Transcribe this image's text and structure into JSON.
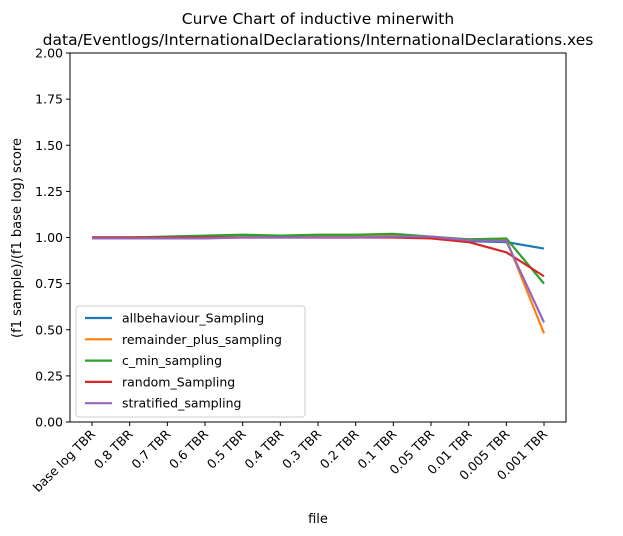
{
  "chart_data": {
    "type": "line",
    "title_line1": "Curve Chart of inductive minerwith",
    "title_line2": "data/Eventlogs/InternationalDeclarations/InternationalDeclarations.xes",
    "xlabel": "file",
    "ylabel": "(f1 sample)/(f1 base log) score",
    "ylim": [
      0,
      2
    ],
    "yticks": [
      "0.00",
      "0.25",
      "0.50",
      "0.75",
      "1.00",
      "1.25",
      "1.50",
      "1.75",
      "2.00"
    ],
    "categories": [
      "base log TBR",
      "0.8 TBR",
      "0.7 TBR",
      "0.6 TBR",
      "0.5 TBR",
      "0.4 TBR",
      "0.3 TBR",
      "0.2 TBR",
      "0.1 TBR",
      "0.05 TBR",
      "0.01 TBR",
      "0.005 TBR",
      "0.001 TBR"
    ],
    "grid": false,
    "legend_position": "lower-left",
    "series": [
      {
        "name": "allbehaviour_Sampling",
        "color": "#1f77b4",
        "values": [
          1.0,
          1.0,
          1.0,
          1.0,
          1.005,
          1.005,
          1.005,
          1.005,
          1.01,
          1.0,
          0.98,
          0.975,
          0.94
        ]
      },
      {
        "name": "remainder_plus_sampling",
        "color": "#ff7f0e",
        "values": [
          1.0,
          1.0,
          1.0,
          1.005,
          1.005,
          1.005,
          1.005,
          1.005,
          1.01,
          1.0,
          0.99,
          0.99,
          0.48
        ]
      },
      {
        "name": "c_min_sampling",
        "color": "#2ca02c",
        "values": [
          1.0,
          1.0,
          1.005,
          1.01,
          1.015,
          1.01,
          1.015,
          1.015,
          1.02,
          1.005,
          0.99,
          0.995,
          0.75
        ]
      },
      {
        "name": "random_Sampling",
        "color": "#d62728",
        "values": [
          1.0,
          1.0,
          1.0,
          1.0,
          1.0,
          1.0,
          1.0,
          1.0,
          1.0,
          0.995,
          0.975,
          0.92,
          0.79
        ]
      },
      {
        "name": "stratified_sampling",
        "color": "#9467bd",
        "values": [
          0.995,
          0.995,
          0.995,
          0.995,
          1.0,
          1.0,
          1.0,
          1.0,
          1.005,
          1.005,
          0.985,
          0.98,
          0.54
        ]
      }
    ]
  }
}
